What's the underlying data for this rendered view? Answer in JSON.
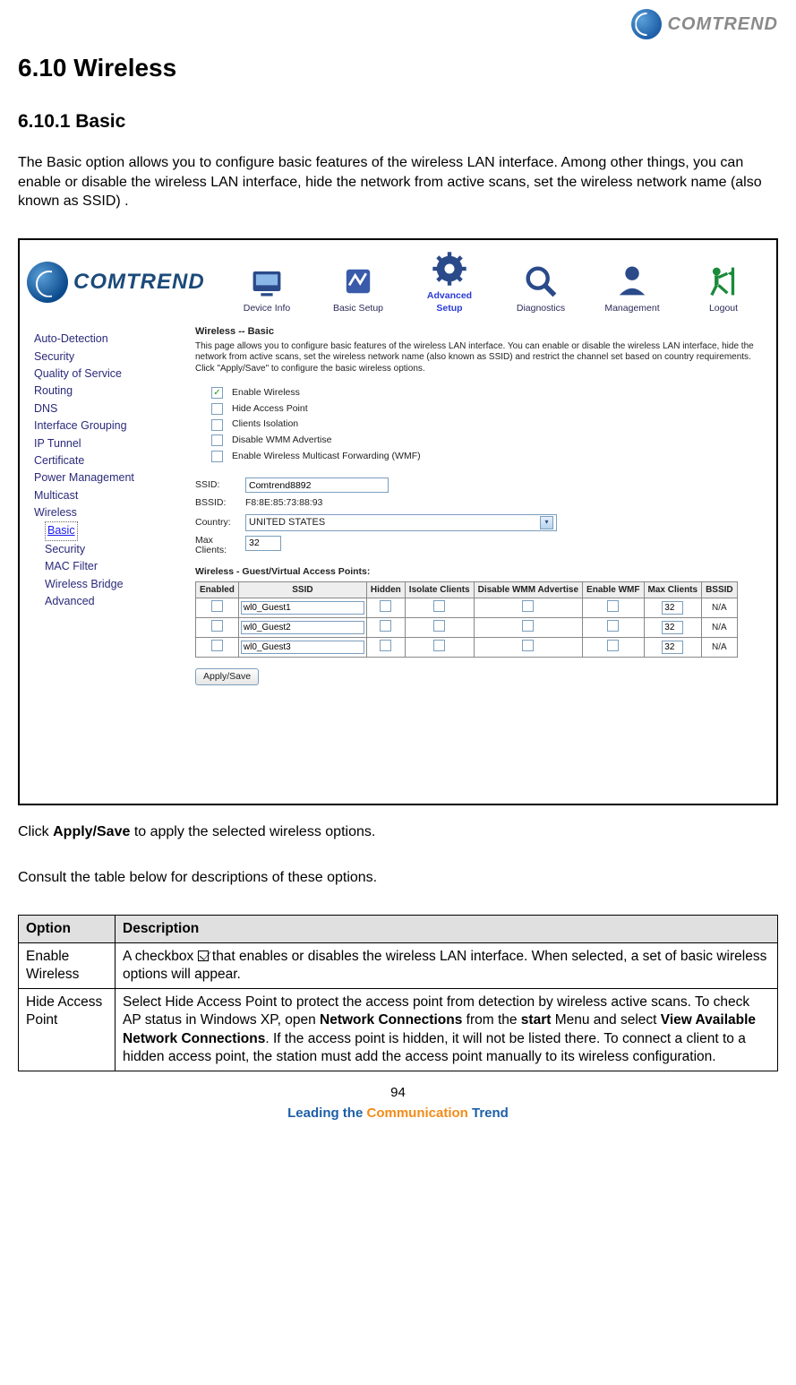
{
  "brand": {
    "name": "COMTREND"
  },
  "headings": {
    "section": "6.10 Wireless",
    "subsection": "6.10.1 Basic"
  },
  "intro_para": "The Basic option allows you to configure basic features of the wireless LAN interface. Among other things, you can enable or disable the wireless LAN interface, hide the network from active scans, set the wireless network name (also known as SSID) .",
  "screenshot": {
    "logo_text": "OMTREND",
    "nav": [
      {
        "label": "Device Info",
        "active": false
      },
      {
        "label": "Basic Setup",
        "active": false
      },
      {
        "label": "Advanced Setup",
        "active": true
      },
      {
        "label": "Diagnostics",
        "active": false
      },
      {
        "label": "Management",
        "active": false
      },
      {
        "label": "Logout",
        "active": false
      }
    ],
    "sidebar": [
      {
        "label": "Auto-Detection",
        "sub": false
      },
      {
        "label": "Security",
        "sub": false
      },
      {
        "label": "Quality of Service",
        "sub": false
      },
      {
        "label": "Routing",
        "sub": false
      },
      {
        "label": "DNS",
        "sub": false
      },
      {
        "label": "Interface Grouping",
        "sub": false
      },
      {
        "label": "IP Tunnel",
        "sub": false
      },
      {
        "label": "Certificate",
        "sub": false
      },
      {
        "label": "Power Management",
        "sub": false
      },
      {
        "label": "Multicast",
        "sub": false
      },
      {
        "label": "Wireless",
        "sub": false
      },
      {
        "label": "Basic",
        "sub": true,
        "selected": true
      },
      {
        "label": "Security",
        "sub": true
      },
      {
        "label": "MAC Filter",
        "sub": true
      },
      {
        "label": "Wireless Bridge",
        "sub": true
      },
      {
        "label": "Advanced",
        "sub": true
      }
    ],
    "panel": {
      "title": "Wireless -- Basic",
      "desc": "This page allows you to configure basic features of the wireless LAN interface. You can enable or disable the wireless LAN interface, hide the network from active scans, set the wireless network name (also known as SSID) and restrict the channel set based on country requirements. Click \"Apply/Save\" to configure the basic wireless options.",
      "checks": [
        {
          "label": "Enable Wireless",
          "checked": true
        },
        {
          "label": "Hide Access Point",
          "checked": false
        },
        {
          "label": "Clients Isolation",
          "checked": false
        },
        {
          "label": "Disable WMM Advertise",
          "checked": false
        },
        {
          "label": "Enable Wireless Multicast Forwarding (WMF)",
          "checked": false
        }
      ],
      "ssid_label": "SSID:",
      "ssid_value": "Comtrend8892",
      "bssid_label": "BSSID:",
      "bssid_value": "F8:8E:85:73:88:93",
      "country_label": "Country:",
      "country_value": "UNITED STATES",
      "maxclients_label": "Max Clients:",
      "maxclients_value": "32",
      "vap_title": "Wireless - Guest/Virtual Access Points:",
      "vap_headers": [
        "Enabled",
        "SSID",
        "Hidden",
        "Isolate Clients",
        "Disable WMM Advertise",
        "Enable WMF",
        "Max Clients",
        "BSSID"
      ],
      "vap_rows": [
        {
          "ssid": "wl0_Guest1",
          "max": "32",
          "bssid": "N/A"
        },
        {
          "ssid": "wl0_Guest2",
          "max": "32",
          "bssid": "N/A"
        },
        {
          "ssid": "wl0_Guest3",
          "max": "32",
          "bssid": "N/A"
        }
      ],
      "apply_label": "Apply/Save"
    }
  },
  "after1_pre": "Click ",
  "after1_strong": "Apply/Save",
  "after1_post": " to apply the selected wireless options.",
  "after2": "Consult the table below for descriptions of these options.",
  "desc_table": {
    "headers": {
      "option": "Option",
      "description": "Description"
    },
    "rows": [
      {
        "option": "Enable Wireless",
        "desc_pre": "A checkbox ",
        "desc_post": " that enables or disables the wireless LAN interface. When selected, a set of basic wireless options will appear.",
        "has_checkbox": true
      },
      {
        "option": "Hide Access Point",
        "desc_html": true,
        "p1": "Select Hide Access Point to protect the access point from detection by wireless active scans. To check AP status in Windows XP, open ",
        "b1": "Network Connections",
        "p2": " from the ",
        "b2": "start",
        "p3": " Menu and select ",
        "b3": "View Available Network Connections",
        "p4": ". If the access point is hidden, it will not be listed there. To connect a client to a hidden access point, the station must add the access point manually to its wireless configuration."
      }
    ]
  },
  "footer": {
    "page_number": "94",
    "tagline": {
      "w1": "Leading the ",
      "w2": "Communication ",
      "w3": "Trend"
    }
  }
}
